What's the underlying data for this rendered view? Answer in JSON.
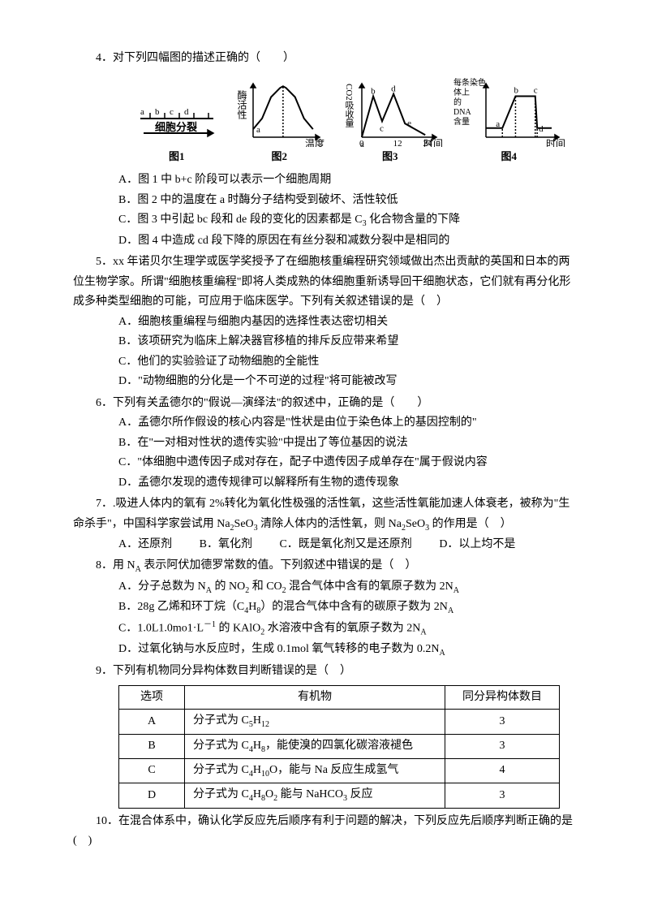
{
  "charts": {
    "labels": [
      "图1",
      "图2",
      "图3",
      "图4"
    ],
    "stroke": "#000000",
    "c1": {
      "bars": [
        "a",
        "b",
        "c",
        "d"
      ],
      "arrow": "细胞分裂"
    },
    "c2": {
      "ylabel": "酶活性",
      "xlabel": "温度",
      "curve": [
        [
          0,
          0.15
        ],
        [
          0.15,
          0.35
        ],
        [
          0.3,
          0.75
        ],
        [
          0.45,
          0.92
        ],
        [
          0.5,
          0.95
        ],
        [
          0.55,
          0.92
        ],
        [
          0.7,
          0.75
        ],
        [
          0.85,
          0.35
        ],
        [
          1,
          0.15
        ]
      ],
      "mark": "a"
    },
    "c3": {
      "ylabel": "CO2吸收量",
      "xlabel": "时间",
      "pts": [
        [
          0,
          0
        ],
        [
          0.18,
          0.9
        ],
        [
          0.32,
          0.35
        ],
        [
          0.5,
          0.95
        ],
        [
          0.68,
          0.3
        ],
        [
          1,
          0.05
        ]
      ],
      "letters": [
        "a",
        "b",
        "c",
        "d"
      ],
      "xt": [
        "0",
        "12",
        "24"
      ]
    },
    "c4": {
      "ylabel": "每条染色体上的DNA含量",
      "xlabel": "时间",
      "pts": [
        [
          0,
          0.2
        ],
        [
          0.25,
          0.2
        ],
        [
          0.45,
          0.9
        ],
        [
          0.75,
          0.9
        ],
        [
          0.78,
          0.2
        ],
        [
          1,
          0.2
        ]
      ],
      "letters": [
        "a",
        "b",
        "c",
        "d"
      ]
    }
  },
  "q4": {
    "stem": "4．对下列四幅图的描述正确的（　　）",
    "A": "A．图 1 中 b+c 阶段可以表示一个细胞周期",
    "B": "B．图 2 中的温度在 a 时酶分子结构受到破坏、活性较低",
    "C_pre": "C．图 3 中引起 bc 段和 de 段的变化的因素都是 C",
    "C_post": " 化合物含量的下降",
    "D": "D．图 4 中造成 cd 段下降的原因在有丝分裂和减数分裂中是相同的"
  },
  "q5": {
    "stem": "5．xx 年诺贝尔生理学或医学奖授予了在细胞核重编程研究领域做出杰出贡献的英国和日本的两位生物学家。所谓\"细胞核重编程\"即将人类成熟的体细胞重新诱导回干细胞状态，它们就有再分化形成多种类型细胞的可能，可应用于临床医学。下列有关叙述错误的是（　）",
    "A": "A．细胞核重编程与细胞内基因的选择性表达密切相关",
    "B": "B．该项研究为临床上解决器官移植的排斥反应带来希望",
    "C": "C．他们的实验验证了动物细胞的全能性",
    "D": "D．\"动物细胞的分化是一个不可逆的过程\"将可能被改写"
  },
  "q6": {
    "stem": "6．下列有关孟德尔的\"假说—演绎法\"的叙述中，正确的是（　　）",
    "A": "A．孟德尔所作假设的核心内容是\"性状是由位于染色体上的基因控制的\"",
    "B": "B．在\"一对相对性状的遗传实验\"中提出了等位基因的说法",
    "C": "C．\"体细胞中遗传因子成对存在，配子中遗传因子成单存在\"属于假说内容",
    "D": "D．孟德尔发现的遗传规律可以解释所有生物的遗传现象"
  },
  "q7": {
    "stem_pre": "7．.吸进人体内的氧有 2%转化为氧化性极强的活性氧，这些活性氧能加速人体衰老，被称为\"生命杀手\"，中国科学家尝试用 Na",
    "stem_mid": " 清除人体内的活性氧，则 Na",
    "stem_post": " 的作用是（　）",
    "A": "A．还原剂",
    "B": "B．氧化剂",
    "C": "C．既是氧化剂又是还原剂",
    "D": "D．以上均不是"
  },
  "q8": {
    "stem": "8．用 N",
    "stem2": " 表示阿伏加德罗常数的值。下列叙述中错误的是（　）",
    "A_pre": "A．分子总数为 N",
    "A_mid": " 的 NO",
    "A_mid2": " 和 CO",
    "A_post": " 混合气体中含有的氧原子数为 2N",
    "B_pre": "B．28g 乙烯和环丁烷（C",
    "B_post": "）的混合气体中含有的碳原子数为 2N",
    "C_pre": "C．1.0L1.0mo1·L",
    "C_mid": " 的 KAlO",
    "C_post": " 水溶液中含有的氧原子数为 2N",
    "D_pre": "D．过氧化钠与水反应时，生成 0.1mol 氧气转移的电子数为 0.2N"
  },
  "q9": {
    "stem": "9．下列有机物同分异构体数目判断错误的是（　）",
    "headers": [
      "选项",
      "有机物",
      "同分异构体数目"
    ],
    "rows": [
      {
        "opt": "A",
        "body_pre": "分子式为 C",
        "sub1": "5",
        "mid": "H",
        "sub2": "12",
        "body_post": "",
        "count": "3"
      },
      {
        "opt": "B",
        "body_pre": "分子式为 C",
        "sub1": "4",
        "mid": "H",
        "sub2": "8",
        "body_post": "，能使溴的四氯化碳溶液褪色",
        "count": "3"
      },
      {
        "opt": "C",
        "body_pre": "分子式为 C",
        "sub1": "4",
        "mid": "H",
        "sub2": "10",
        "body_post": "O，能与 Na 反应生成氢气",
        "count": "4"
      },
      {
        "opt": "D",
        "body_pre": "分子式为 C",
        "sub1": "4",
        "mid": "H",
        "sub2": "8",
        "body_post_pre": "O",
        "sub3": "2",
        "body_post": " 能与 NaHCO",
        "sub4": "3",
        "tail": " 反应",
        "count": "3"
      }
    ]
  },
  "q10": {
    "stem": "10．在混合体系中，确认化学反应先后顺序有利于问题的解决，下列反应先后顺序判断正确的是(　)"
  }
}
